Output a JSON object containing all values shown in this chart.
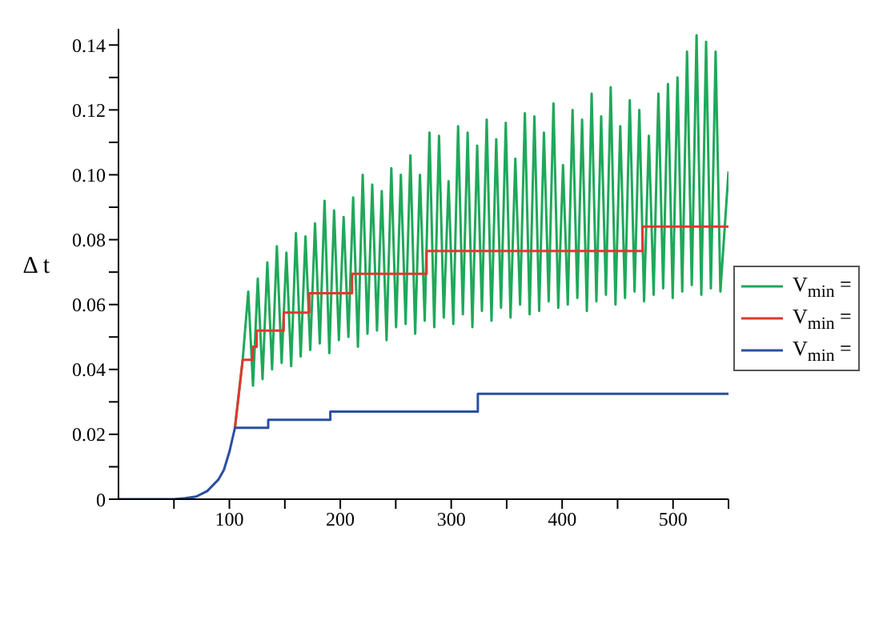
{
  "chart_data": {
    "type": "line",
    "ylabel": "Δ t",
    "xlim": [
      0,
      550
    ],
    "ylim": [
      0,
      0.145
    ],
    "xticks": [
      {
        "value": 50,
        "label": null
      },
      100,
      {
        "value": 150,
        "label": null
      },
      200,
      {
        "value": 250,
        "label": null
      },
      300,
      {
        "value": 350,
        "label": null
      },
      400,
      {
        "value": 450,
        "label": null
      },
      500,
      {
        "value": 550,
        "label": null
      }
    ],
    "yticks": [
      0,
      {
        "value": 0.01,
        "label": null
      },
      0.02,
      {
        "value": 0.03,
        "label": null
      },
      0.04,
      {
        "value": 0.05,
        "label": null
      },
      0.06,
      {
        "value": 0.07,
        "label": null
      },
      0.08,
      {
        "value": 0.09,
        "label": null
      },
      {
        "value": 0.1,
        "label": "0.10"
      },
      {
        "value": 0.11,
        "label": null
      },
      0.12,
      {
        "value": 0.13,
        "label": null
      },
      0.14
    ],
    "legend": "right",
    "marker": "none",
    "line_style": "solid",
    "series": [
      {
        "name": "V$_{min}$ =",
        "color": "#1fa85a",
        "x": [
          105,
          112,
          117,
          121.3,
          125.6,
          129.9,
          134.2,
          138.5,
          142.8,
          147.1,
          151.4,
          155.7,
          160,
          164.3,
          168.6,
          172.9,
          177.2,
          181.5,
          185.8,
          190.1,
          194.4,
          198.7,
          203,
          207.3,
          211.6,
          215.9,
          220.2,
          224.5,
          228.8,
          233.1,
          237.4,
          241.7,
          246,
          250.3,
          254.6,
          258.9,
          263.2,
          267.5,
          271.8,
          276.1,
          280.4,
          284.7,
          289,
          293.3,
          297.6,
          301.9,
          306.2,
          310.5,
          314.8,
          319.1,
          323.4,
          327.7,
          332,
          336.3,
          340.6,
          344.9,
          349.2,
          353.5,
          357.8,
          362.1,
          366.4,
          370.7,
          375,
          379.3,
          383.6,
          387.9,
          392.2,
          396.5,
          400.8,
          405.1,
          409.4,
          413.7,
          418,
          422.3,
          426.6,
          430.9,
          435.2,
          439.5,
          443.8,
          448.1,
          452.4,
          456.7,
          461,
          465.3,
          469.6,
          473.9,
          478.2,
          482.5,
          486.8,
          491.1,
          495.4,
          499.7,
          504,
          508.3,
          512.6,
          516.9,
          521.2,
          525.5,
          529.8,
          534.1,
          538.4,
          542.7,
          550
        ],
        "values": [
          0.022,
          0.043,
          0.064,
          0.035,
          0.068,
          0.037,
          0.073,
          0.04,
          0.078,
          0.042,
          0.076,
          0.041,
          0.082,
          0.044,
          0.081,
          0.046,
          0.085,
          0.048,
          0.092,
          0.045,
          0.089,
          0.049,
          0.087,
          0.05,
          0.093,
          0.047,
          0.1,
          0.051,
          0.097,
          0.052,
          0.095,
          0.049,
          0.102,
          0.053,
          0.1,
          0.054,
          0.106,
          0.051,
          0.1,
          0.055,
          0.113,
          0.053,
          0.112,
          0.056,
          0.098,
          0.054,
          0.115,
          0.057,
          0.113,
          0.053,
          0.109,
          0.058,
          0.117,
          0.055,
          0.111,
          0.059,
          0.116,
          0.056,
          0.105,
          0.06,
          0.119,
          0.057,
          0.118,
          0.058,
          0.113,
          0.061,
          0.122,
          0.059,
          0.103,
          0.06,
          0.12,
          0.062,
          0.117,
          0.058,
          0.125,
          0.061,
          0.118,
          0.063,
          0.127,
          0.06,
          0.115,
          0.062,
          0.123,
          0.064,
          0.12,
          0.061,
          0.112,
          0.063,
          0.125,
          0.065,
          0.128,
          0.062,
          0.13,
          0.064,
          0.138,
          0.066,
          0.143,
          0.063,
          0.141,
          0.065,
          0.138,
          0.064,
          0.101
        ]
      },
      {
        "name": "V$_{min}$ =",
        "color": "#e0382f",
        "x": [
          105,
          112,
          121,
          121,
          124.6,
          124.6,
          149,
          149,
          172,
          172,
          210.6,
          210.6,
          277.8,
          277.8,
          472.5,
          472.5,
          550
        ],
        "values": [
          0.022,
          0.043,
          0.043,
          0.047,
          0.047,
          0.052,
          0.052,
          0.0575,
          0.0575,
          0.0635,
          0.0635,
          0.0695,
          0.0695,
          0.0765,
          0.0765,
          0.084,
          0.084
        ]
      },
      {
        "name": "V$_{min}$ =",
        "color": "#2b4fa0",
        "x": [
          0,
          50,
          60,
          70,
          80,
          90,
          95,
          100,
          105,
          135,
          135,
          191,
          191,
          324,
          324,
          550
        ],
        "values": [
          0,
          0,
          0.0003,
          0.0008,
          0.0025,
          0.006,
          0.009,
          0.0146,
          0.022,
          0.022,
          0.0245,
          0.0245,
          0.027,
          0.027,
          0.0325,
          0.0325
        ]
      }
    ]
  }
}
